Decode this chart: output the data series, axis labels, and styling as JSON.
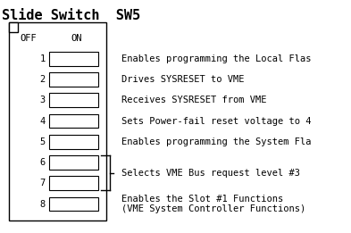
{
  "title": "Slide Switch  SW5",
  "title_fontsize": 11,
  "title_bold": true,
  "off_label": "OFF",
  "on_label": "ON",
  "num_switches": 8,
  "switch_labels": [
    "1",
    "2",
    "3",
    "4",
    "5",
    "6",
    "7",
    "8"
  ],
  "bg_color": "#ffffff",
  "box_color": "#000000",
  "text_color": "#000000",
  "font_family": "monospace",
  "font_size": 7.5,
  "fig_width": 3.93,
  "fig_height": 2.61
}
